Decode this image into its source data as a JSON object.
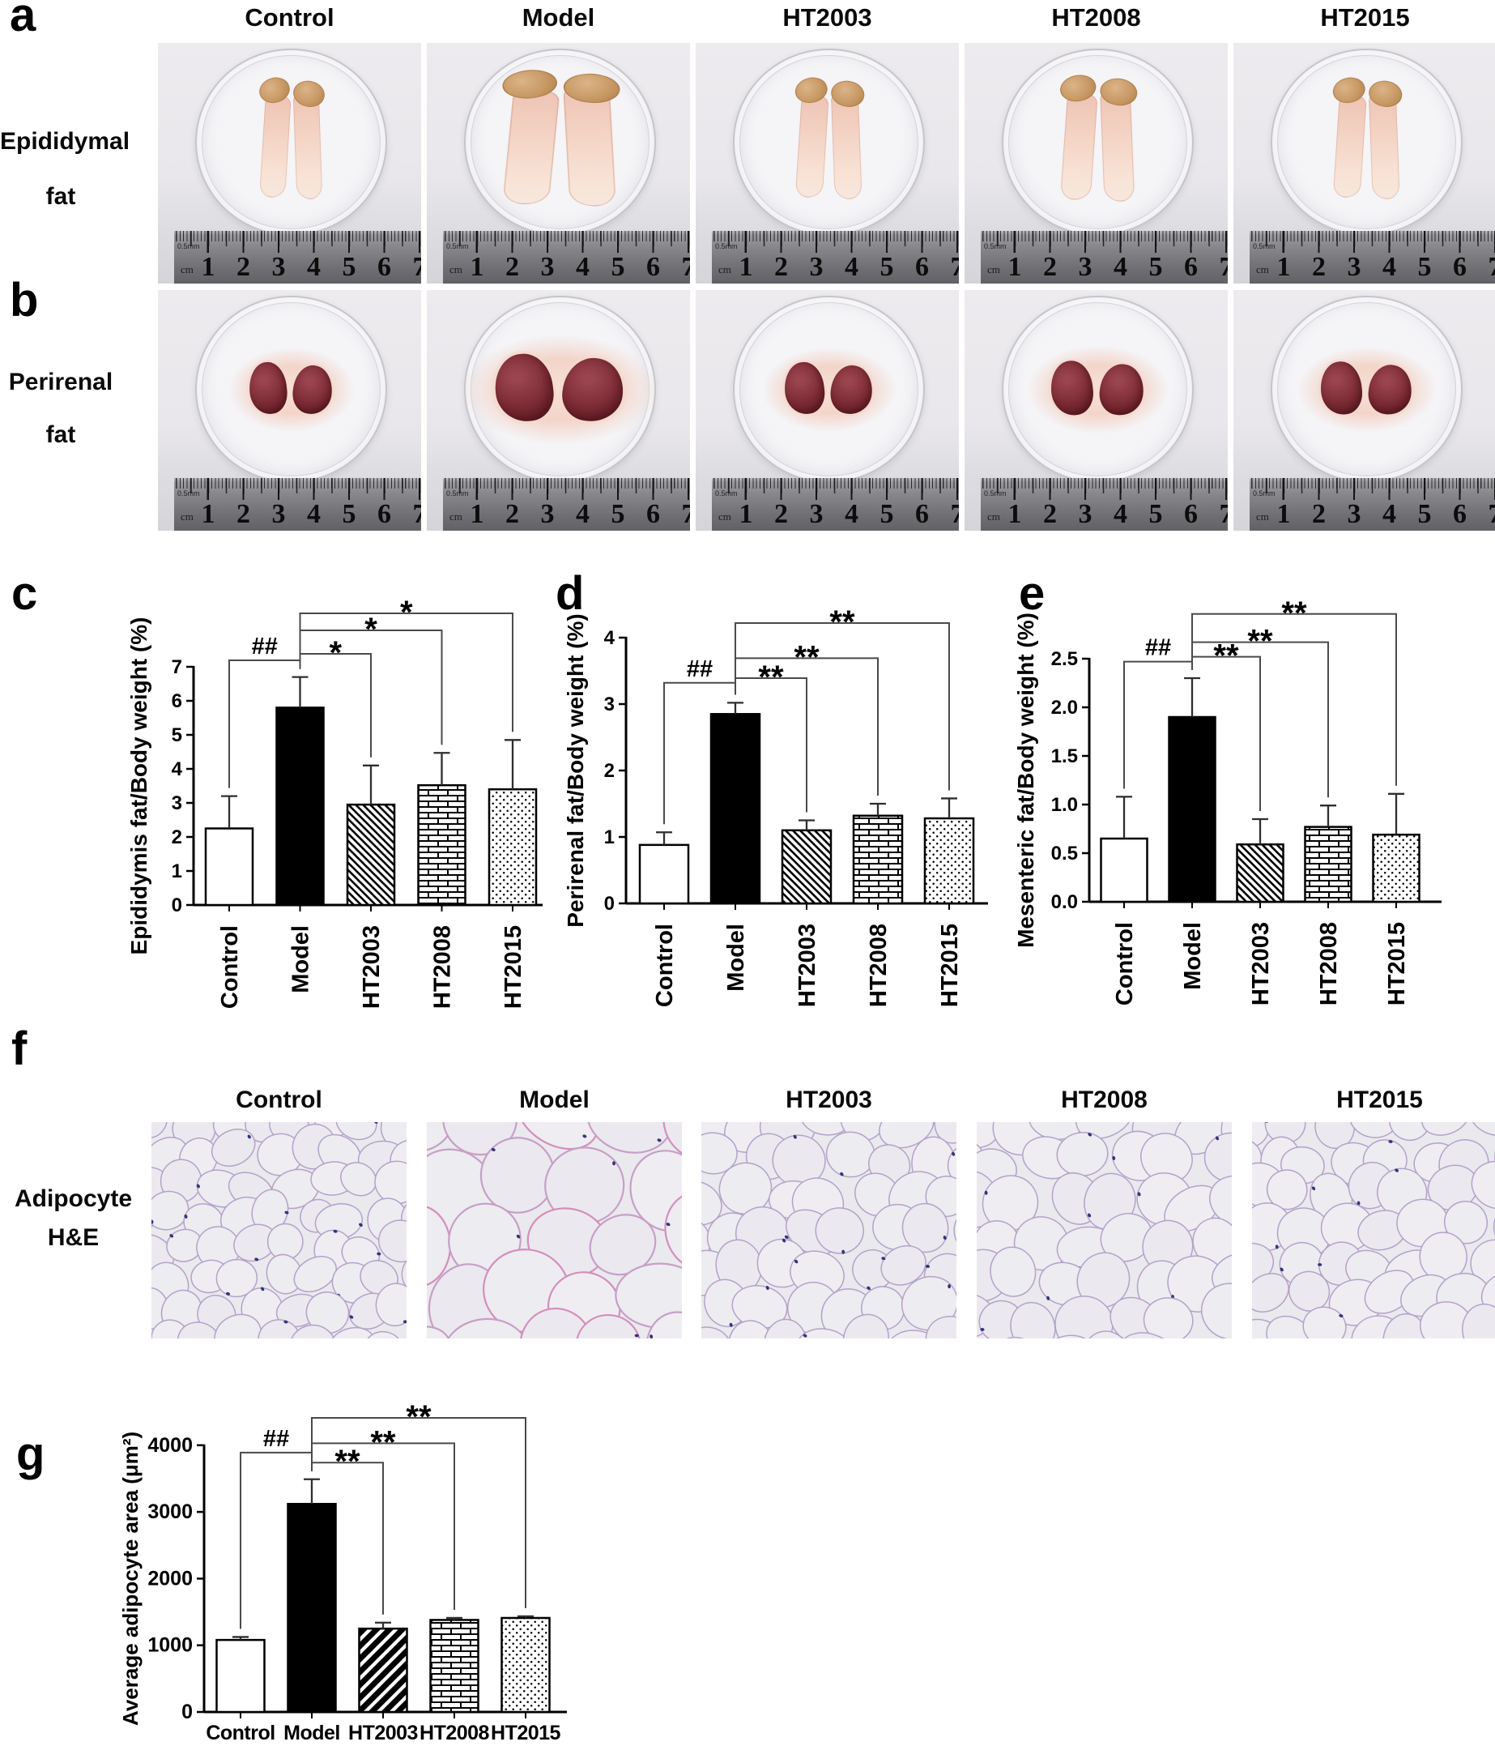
{
  "groups": [
    "Control",
    "Model",
    "HT2003",
    "HT2008",
    "HT2015"
  ],
  "panels": {
    "a": {
      "letter": "a",
      "row_label": [
        "Epididymal",
        "fat"
      ]
    },
    "b": {
      "letter": "b",
      "row_label": [
        "Perirenal",
        "fat"
      ]
    },
    "c": {
      "letter": "c"
    },
    "d": {
      "letter": "d"
    },
    "e": {
      "letter": "e"
    },
    "f": {
      "letter": "f",
      "row_label": [
        "Adipocyte",
        "H&E"
      ]
    },
    "g": {
      "letter": "g"
    }
  },
  "ruler": {
    "unit_label": "cm",
    "micro_label": "0.5mm",
    "numbers": [
      "1",
      "2",
      "3",
      "4",
      "5",
      "6",
      "7"
    ]
  },
  "specimens": {
    "epididymal_scales": [
      {
        "w": 1,
        "h": 1
      },
      {
        "w": 1.8,
        "h": 1.12
      },
      {
        "w": 1.06,
        "h": 1
      },
      {
        "w": 1.18,
        "h": 1.04
      },
      {
        "w": 1.06,
        "h": 1
      }
    ],
    "perirenal_scales": [
      {
        "w": 1,
        "h": 1
      },
      {
        "w": 1.55,
        "h": 1.3
      },
      {
        "w": 1.06,
        "h": 1
      },
      {
        "w": 1.12,
        "h": 1.05
      },
      {
        "w": 1.1,
        "h": 1.02
      }
    ]
  },
  "histology": {
    "cell_scales": [
      1,
      1.85,
      1.18,
      1.25,
      1.12
    ]
  },
  "colors": {
    "bar_fill": "#000000",
    "hist_line": "#b4a2c8",
    "hist_line_model": "#c79fc6",
    "nucleus": "#34347c",
    "tissue_pink": "#f2cabd",
    "tissue_tan": "#c99b66",
    "kidney_red": "#76242e"
  },
  "chart_data": [
    {
      "id": "c",
      "type": "bar",
      "ylabel": "Epididymis fat/Body weight (%)",
      "categories": [
        "Control",
        "Model",
        "HT2003",
        "HT2008",
        "HT2015"
      ],
      "values": [
        2.25,
        5.8,
        2.95,
        3.52,
        3.4
      ],
      "errors_up": [
        0.95,
        0.9,
        1.15,
        0.95,
        1.45
      ],
      "ylim": [
        0,
        7
      ],
      "yticks": [
        0,
        1,
        2,
        3,
        4,
        5,
        6,
        7
      ],
      "ytick_labels": [
        "0",
        "1",
        "2",
        "3",
        "4",
        "5",
        "6",
        "7"
      ],
      "bar_styles": [
        "open",
        "solid",
        "hatch",
        "brick",
        "dots"
      ],
      "grid": false,
      "xlabel_rotation": "vertical",
      "significance": [
        {
          "from": "Control",
          "to": "Model",
          "label": "##",
          "level": 7.19
        },
        {
          "from": "Model",
          "to": "HT2003",
          "label": "*",
          "level": 7.38
        },
        {
          "from": "Model",
          "to": "HT2008",
          "label": "*",
          "level": 8.07
        },
        {
          "from": "Model",
          "to": "HT2015",
          "label": "*",
          "level": 8.57
        }
      ]
    },
    {
      "id": "d",
      "type": "bar",
      "ylabel": "Perirenal fat/Body weight (%)",
      "categories": [
        "Control",
        "Model",
        "HT2003",
        "HT2008",
        "HT2015"
      ],
      "values": [
        0.88,
        2.85,
        1.1,
        1.32,
        1.28
      ],
      "errors_up": [
        0.19,
        0.17,
        0.15,
        0.18,
        0.3
      ],
      "ylim": [
        0,
        4
      ],
      "yticks": [
        0,
        1,
        2,
        3,
        4
      ],
      "ytick_labels": [
        "0",
        "1",
        "2",
        "3",
        "4"
      ],
      "bar_styles": [
        "open",
        "solid",
        "hatch",
        "brick",
        "dots"
      ],
      "grid": false,
      "xlabel_rotation": "vertical",
      "significance": [
        {
          "from": "Control",
          "to": "Model",
          "label": "##",
          "level": 3.32
        },
        {
          "from": "Model",
          "to": "HT2003",
          "label": "**",
          "level": 3.39
        },
        {
          "from": "Model",
          "to": "HT2008",
          "label": "**",
          "level": 3.69
        },
        {
          "from": "Model",
          "to": "HT2015",
          "label": "**",
          "level": 4.22
        }
      ]
    },
    {
      "id": "e",
      "type": "bar",
      "ylabel": "Mesenteric fat/Body weight (%)",
      "categories": [
        "Control",
        "Model",
        "HT2003",
        "HT2008",
        "HT2015"
      ],
      "values": [
        0.65,
        1.9,
        0.59,
        0.77,
        0.69
      ],
      "errors_up": [
        0.43,
        0.4,
        0.26,
        0.22,
        0.42
      ],
      "ylim": [
        0,
        2.5
      ],
      "yticks": [
        0,
        0.5,
        1,
        1.5,
        2,
        2.5
      ],
      "ytick_labels": [
        "0.0",
        "0.5",
        "1.0",
        "1.5",
        "2.0",
        "2.5"
      ],
      "bar_styles": [
        "open",
        "solid",
        "hatch",
        "brick",
        "dots"
      ],
      "grid": false,
      "xlabel_rotation": "vertical",
      "significance": [
        {
          "from": "Control",
          "to": "Model",
          "label": "##",
          "level": 2.47
        },
        {
          "from": "Model",
          "to": "HT2003",
          "label": "**",
          "level": 2.52
        },
        {
          "from": "Model",
          "to": "HT2008",
          "label": "**",
          "level": 2.67
        },
        {
          "from": "Model",
          "to": "HT2015",
          "label": "**",
          "level": 2.96
        }
      ]
    },
    {
      "id": "g",
      "type": "bar",
      "ylabel": "Average adipocyte area (μm²)",
      "categories": [
        "Control",
        "Model",
        "HT2003",
        "HT2008",
        "HT2015"
      ],
      "values": [
        1080,
        3120,
        1250,
        1380,
        1410
      ],
      "errors_up": [
        45,
        370,
        90,
        30,
        25
      ],
      "ylim": [
        0,
        4000
      ],
      "yticks": [
        0,
        1000,
        2000,
        3000,
        4000
      ],
      "ytick_labels": [
        "0",
        "1000",
        "2000",
        "3000",
        "4000"
      ],
      "bar_styles": [
        "open",
        "solid",
        "hatch",
        "brick",
        "dots"
      ],
      "grid": false,
      "xlabel_rotation": "horizontal",
      "significance": [
        {
          "from": "Control",
          "to": "Model",
          "label": "##",
          "level": 3890
        },
        {
          "from": "Model",
          "to": "HT2003",
          "label": "**",
          "level": 3740
        },
        {
          "from": "Model",
          "to": "HT2008",
          "label": "**",
          "level": 4030
        },
        {
          "from": "Model",
          "to": "HT2015",
          "label": "**",
          "level": 4410
        }
      ]
    }
  ]
}
